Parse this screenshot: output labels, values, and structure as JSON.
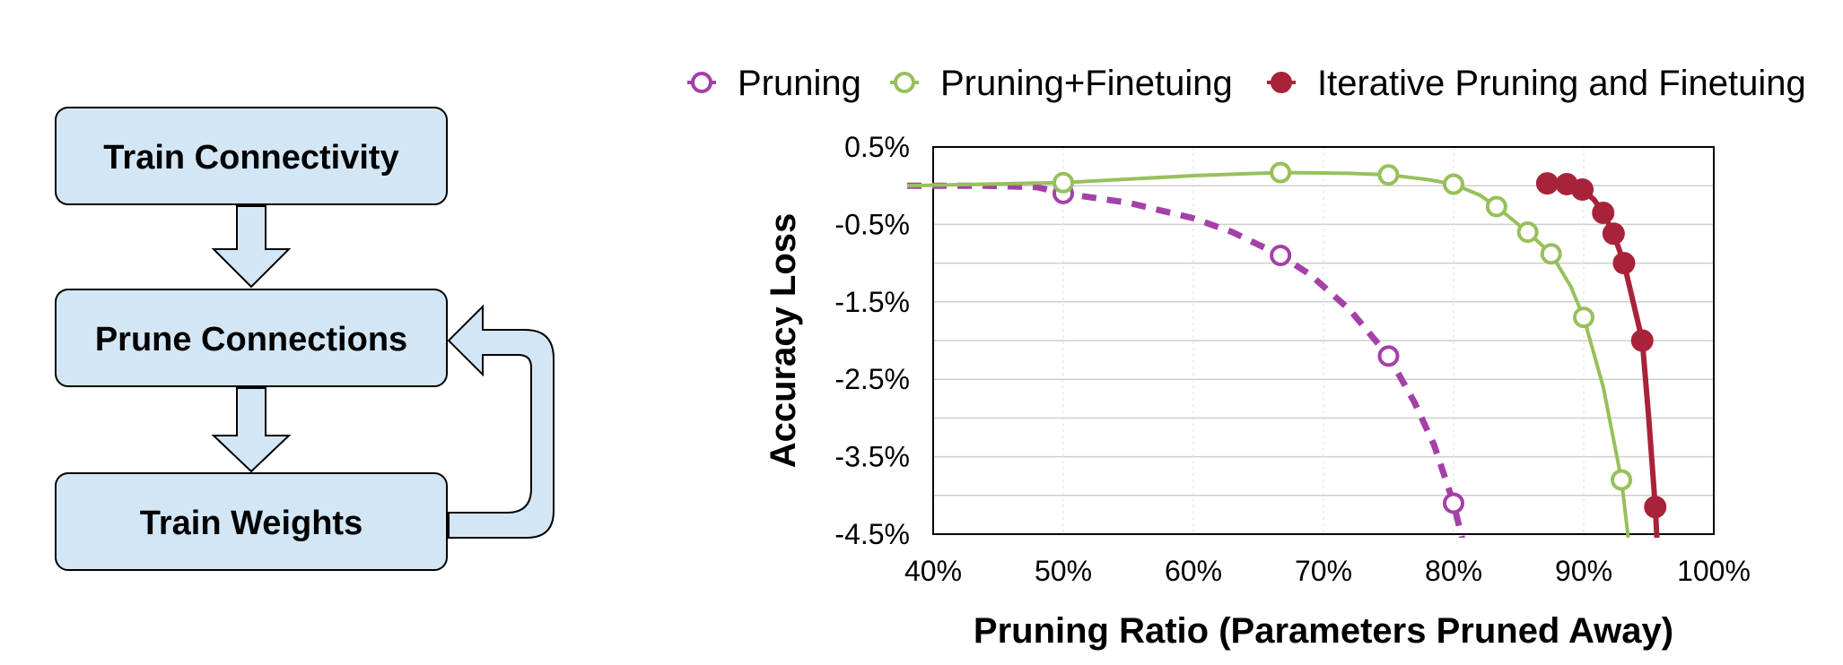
{
  "flow": {
    "steps": [
      {
        "label": "Train Connectivity"
      },
      {
        "label": "Prune Connections"
      },
      {
        "label": "Train Weights"
      }
    ],
    "fill": "#d3e6f5",
    "stroke": "#000000"
  },
  "chart_data": {
    "type": "line",
    "xlabel": "Pruning Ratio (Parameters Pruned Away)",
    "ylabel": "Accuracy Loss",
    "xlim": [
      40,
      100
    ],
    "ylim": [
      -4.5,
      0.5
    ],
    "x_ticks": [
      "40%",
      "50%",
      "60%",
      "70%",
      "80%",
      "90%",
      "100%"
    ],
    "y_ticks": [
      "0.5%",
      "-0.5%",
      "-1.5%",
      "-2.5%",
      "-3.5%",
      "-4.5%"
    ],
    "grid": "horizontal",
    "legend_position": "top",
    "series": [
      {
        "name": "Pruning",
        "color": "#a540a8",
        "marker": "open-circle",
        "line_style": "dashed",
        "points": [
          [
            50,
            -0.1
          ],
          [
            66.7,
            -0.9
          ],
          [
            75,
            -2.2
          ],
          [
            80,
            -4.1
          ]
        ],
        "curve": [
          [
            38,
            0.0
          ],
          [
            44,
            0.0
          ],
          [
            48,
            -0.02
          ],
          [
            50,
            -0.1
          ],
          [
            55,
            -0.22
          ],
          [
            60,
            -0.42
          ],
          [
            63,
            -0.6
          ],
          [
            66.7,
            -0.9
          ],
          [
            69,
            -1.15
          ],
          [
            72,
            -1.6
          ],
          [
            75,
            -2.2
          ],
          [
            77,
            -2.8
          ],
          [
            78.5,
            -3.35
          ],
          [
            80,
            -4.1
          ],
          [
            81,
            -4.8
          ]
        ]
      },
      {
        "name": "Pruning+Finetuing",
        "color": "#97c05b",
        "marker": "open-circle",
        "line_style": "solid",
        "points": [
          [
            50,
            0.04
          ],
          [
            66.7,
            0.17
          ],
          [
            75,
            0.14
          ],
          [
            80,
            0.02
          ],
          [
            83.3,
            -0.27
          ],
          [
            85.7,
            -0.6
          ],
          [
            87.5,
            -0.88
          ],
          [
            90,
            -1.7
          ],
          [
            92.9,
            -3.8
          ]
        ],
        "curve": [
          [
            38,
            0.0
          ],
          [
            50,
            0.04
          ],
          [
            60,
            0.13
          ],
          [
            66.7,
            0.17
          ],
          [
            72,
            0.16
          ],
          [
            75,
            0.14
          ],
          [
            78,
            0.08
          ],
          [
            80,
            0.02
          ],
          [
            82,
            -0.12
          ],
          [
            83.3,
            -0.27
          ],
          [
            85.7,
            -0.6
          ],
          [
            87.5,
            -0.88
          ],
          [
            89,
            -1.3
          ],
          [
            90,
            -1.7
          ],
          [
            91.5,
            -2.6
          ],
          [
            92.9,
            -3.8
          ],
          [
            93.6,
            -4.8
          ]
        ]
      },
      {
        "name": "Iterative Pruning and Finetuing",
        "color": "#a8233a",
        "marker": "filled-circle",
        "line_style": "solid",
        "points": [
          [
            87.2,
            0.03
          ],
          [
            88.7,
            0.02
          ],
          [
            89.9,
            -0.05
          ],
          [
            91.5,
            -0.35
          ],
          [
            92.3,
            -0.62
          ],
          [
            93.1,
            -1.0
          ],
          [
            94.5,
            -2.0
          ],
          [
            95.5,
            -4.15
          ]
        ],
        "curve": [
          [
            87.2,
            0.03
          ],
          [
            88.7,
            0.02
          ],
          [
            89.9,
            -0.05
          ],
          [
            90.8,
            -0.18
          ],
          [
            91.5,
            -0.35
          ],
          [
            92.3,
            -0.62
          ],
          [
            93.1,
            -1.0
          ],
          [
            93.8,
            -1.5
          ],
          [
            94.5,
            -2.0
          ],
          [
            95.0,
            -3.0
          ],
          [
            95.5,
            -4.15
          ],
          [
            95.7,
            -4.8
          ]
        ]
      }
    ]
  }
}
